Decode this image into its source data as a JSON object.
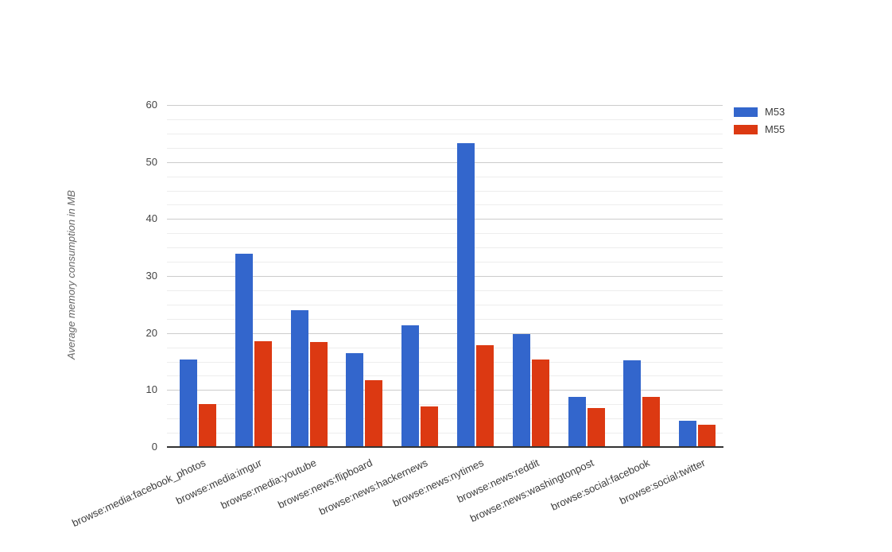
{
  "chart_data": {
    "type": "bar",
    "title": "",
    "xlabel": "",
    "ylabel": "Average memory consumption in MB",
    "ylim": [
      0,
      60
    ],
    "y_major_step": 10,
    "y_minor_step": 2.5,
    "grid": true,
    "legend_position": "top-right",
    "categories": [
      "browse:media:facebook_photos",
      "browse:media:imgur",
      "browse:media:youtube",
      "browse:news:flipboard",
      "browse:news:hackernews",
      "browse:news:nytimes",
      "browse:news:reddit",
      "browse:news:washingtonpost",
      "browse:social:facebook",
      "browse:social:twitter"
    ],
    "series": [
      {
        "name": "M53",
        "color": "#3366cc",
        "values": [
          15.3,
          33.9,
          24,
          16.5,
          21.4,
          53.3,
          19.8,
          8.8,
          15.2,
          4.6
        ]
      },
      {
        "name": "M55",
        "color": "#dc3912",
        "values": [
          7.6,
          18.6,
          18.4,
          11.7,
          7.1,
          17.8,
          15.4,
          6.9,
          8.8,
          3.9
        ]
      }
    ],
    "y_tick_labels": [
      "0",
      "10",
      "20",
      "30",
      "40",
      "50",
      "60"
    ]
  },
  "colors": {
    "background": "#ffffff",
    "major_grid": "#cccccc",
    "minor_grid": "#ededed",
    "axis_line": "#333333",
    "tick_text": "#444444",
    "axis_title_text": "#666666"
  }
}
